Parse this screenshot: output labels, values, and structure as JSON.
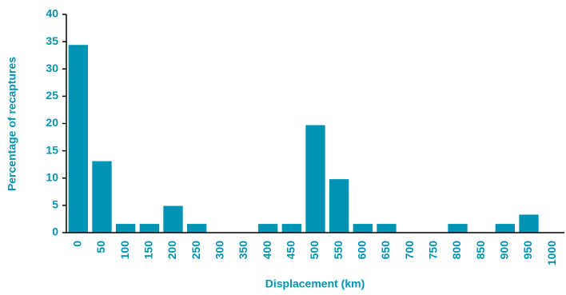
{
  "chart_data": {
    "type": "bar",
    "x_label": "Displacement (km)",
    "y_label": "Percentage of recaptures",
    "categories": [
      "0",
      "50",
      "100",
      "150",
      "200",
      "250",
      "300",
      "350",
      "400",
      "450",
      "500",
      "550",
      "600",
      "650",
      "700",
      "750",
      "800",
      "850",
      "900",
      "950",
      "1000"
    ],
    "values": [
      34.4,
      13.1,
      1.6,
      1.6,
      4.9,
      1.6,
      0,
      0,
      1.6,
      1.6,
      19.7,
      9.8,
      1.6,
      1.6,
      0,
      0,
      1.6,
      0,
      1.6,
      3.3,
      0
    ],
    "color": "#0093b3",
    "ylim": [
      0,
      40
    ],
    "yticks": [
      0,
      5,
      10,
      15,
      20,
      25,
      30,
      35,
      40
    ]
  }
}
